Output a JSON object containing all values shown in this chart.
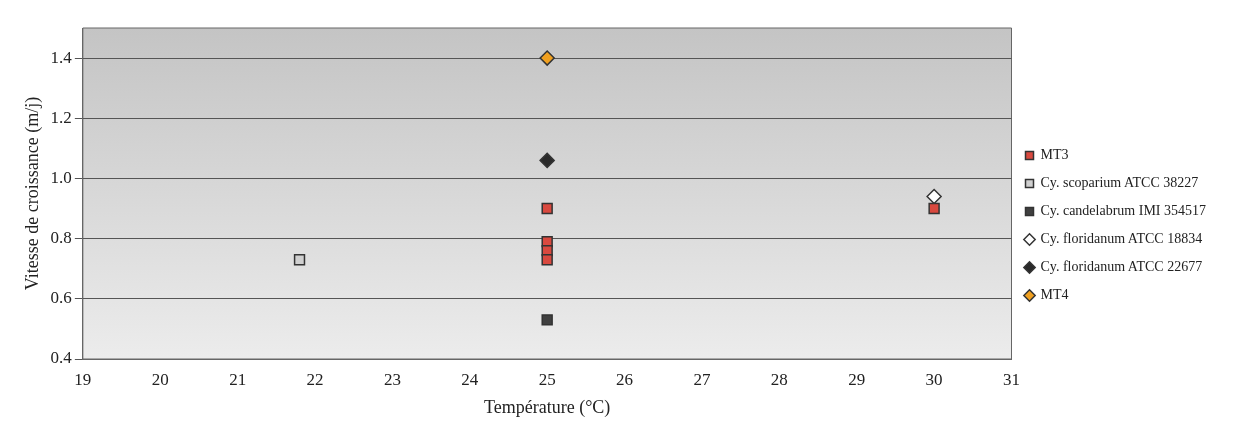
{
  "chart_data": {
    "type": "scatter",
    "xlabel": "Température (°C)",
    "ylabel": "Vitesse de croissance (m/j)",
    "xlim": [
      19,
      31
    ],
    "xticks": [
      19,
      20,
      21,
      22,
      23,
      24,
      25,
      26,
      27,
      28,
      29,
      30,
      31
    ],
    "ylim": [
      0.4,
      1.5
    ],
    "yticks": [
      0.4,
      0.6,
      0.8,
      {
        "value": 1,
        "label": "1.0"
      },
      1.2,
      1.4
    ],
    "grid": "y",
    "legend": "right",
    "series": [
      {
        "name": "MT3",
        "color": "#d9493f",
        "marker": "square",
        "x": [
          25,
          25,
          25,
          25,
          30
        ],
        "values": [
          0.9,
          0.79,
          0.76,
          0.73,
          0.9
        ]
      },
      {
        "name": "Cy. scoparium ATCC 38227",
        "color": "#d0d0d0",
        "marker": "square",
        "x": [
          21.8
        ],
        "values": [
          0.73
        ]
      },
      {
        "name": "Cy. candelabrum IMI 354517",
        "color": "#404040",
        "marker": "square",
        "x": [
          25
        ],
        "values": [
          0.53
        ]
      },
      {
        "name": "Cy. floridanum ATCC 18834",
        "color": "#ffffff",
        "marker": "diamond",
        "x": [
          30
        ],
        "values": [
          0.94
        ]
      },
      {
        "name": "Cy. floridanum ATCC 22677",
        "color": "#2a2a2a",
        "marker": "diamond",
        "x": [
          25
        ],
        "values": [
          1.06
        ]
      },
      {
        "name": "MT4",
        "color": "#f0a020",
        "marker": "diamond",
        "x": [
          25
        ],
        "values": [
          1.4
        ]
      }
    ]
  }
}
